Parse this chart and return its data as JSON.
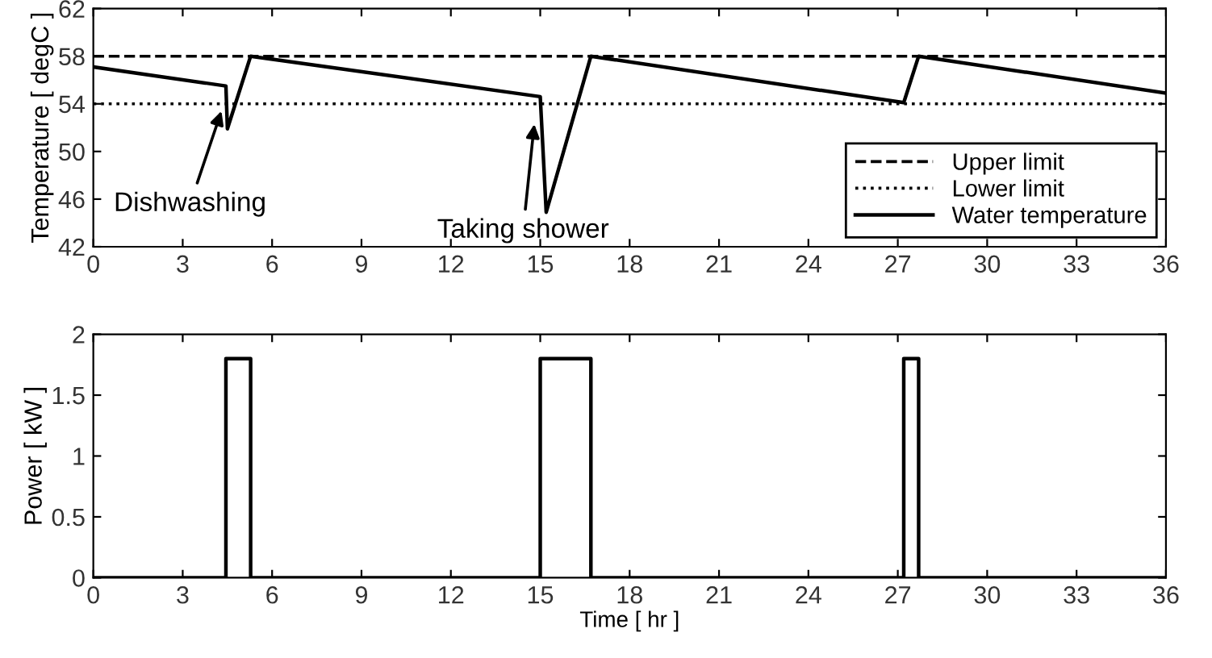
{
  "chart_data": [
    {
      "type": "line",
      "ylabel": "Temperature [ degC ]",
      "xlim": [
        0,
        36
      ],
      "xticks": [
        0,
        3,
        6,
        9,
        12,
        15,
        18,
        21,
        24,
        27,
        30,
        33,
        36
      ],
      "ylim": [
        42,
        62
      ],
      "yticks": [
        42,
        46,
        50,
        54,
        58,
        62
      ],
      "grid": false,
      "legend": "bottom right",
      "line_style": "solid",
      "series": [
        {
          "name": "Water temperature",
          "color": "#000000",
          "x": [
            0,
            4.45,
            4.5,
            5.28,
            15.0,
            15.2,
            16.7,
            27.2,
            27.7,
            36
          ],
          "values": [
            57.1,
            55.5,
            51.9,
            58,
            54.6,
            44.9,
            58,
            54.1,
            58,
            54.9
          ]
        }
      ],
      "ref_lines": [
        {
          "axis": "y",
          "value": 58,
          "label": "Upper limit",
          "color": "#000000",
          "line_style": "dashed"
        },
        {
          "axis": "y",
          "value": 54,
          "label": "Lower limit",
          "color": "#000000",
          "line_style": "dotted"
        }
      ],
      "annotations": [
        {
          "text": "Dishwashing",
          "x": 4.3,
          "y": 53.4
        },
        {
          "text": "Taking shower",
          "x": 14.8,
          "y": 52.3
        }
      ]
    },
    {
      "type": "line",
      "xlabel": "Time [ hr ]",
      "ylabel": "Power [ kW ]",
      "xlim": [
        0,
        36
      ],
      "xticks": [
        0,
        3,
        6,
        9,
        12,
        15,
        18,
        21,
        24,
        27,
        30,
        33,
        36
      ],
      "ylim": [
        0,
        2
      ],
      "yticks": [
        0,
        0.5,
        1,
        1.5,
        2
      ],
      "grid": false,
      "line_style": "solid",
      "series": [
        {
          "color": "#000000",
          "x": [
            0,
            4.45,
            4.45,
            5.28,
            5.28,
            15.0,
            15.0,
            16.7,
            16.7,
            27.2,
            27.2,
            27.7,
            27.7,
            36
          ],
          "values": [
            0,
            0,
            1.8,
            1.8,
            0,
            0,
            1.8,
            1.8,
            0,
            0,
            1.8,
            1.8,
            0,
            0
          ]
        }
      ]
    }
  ]
}
